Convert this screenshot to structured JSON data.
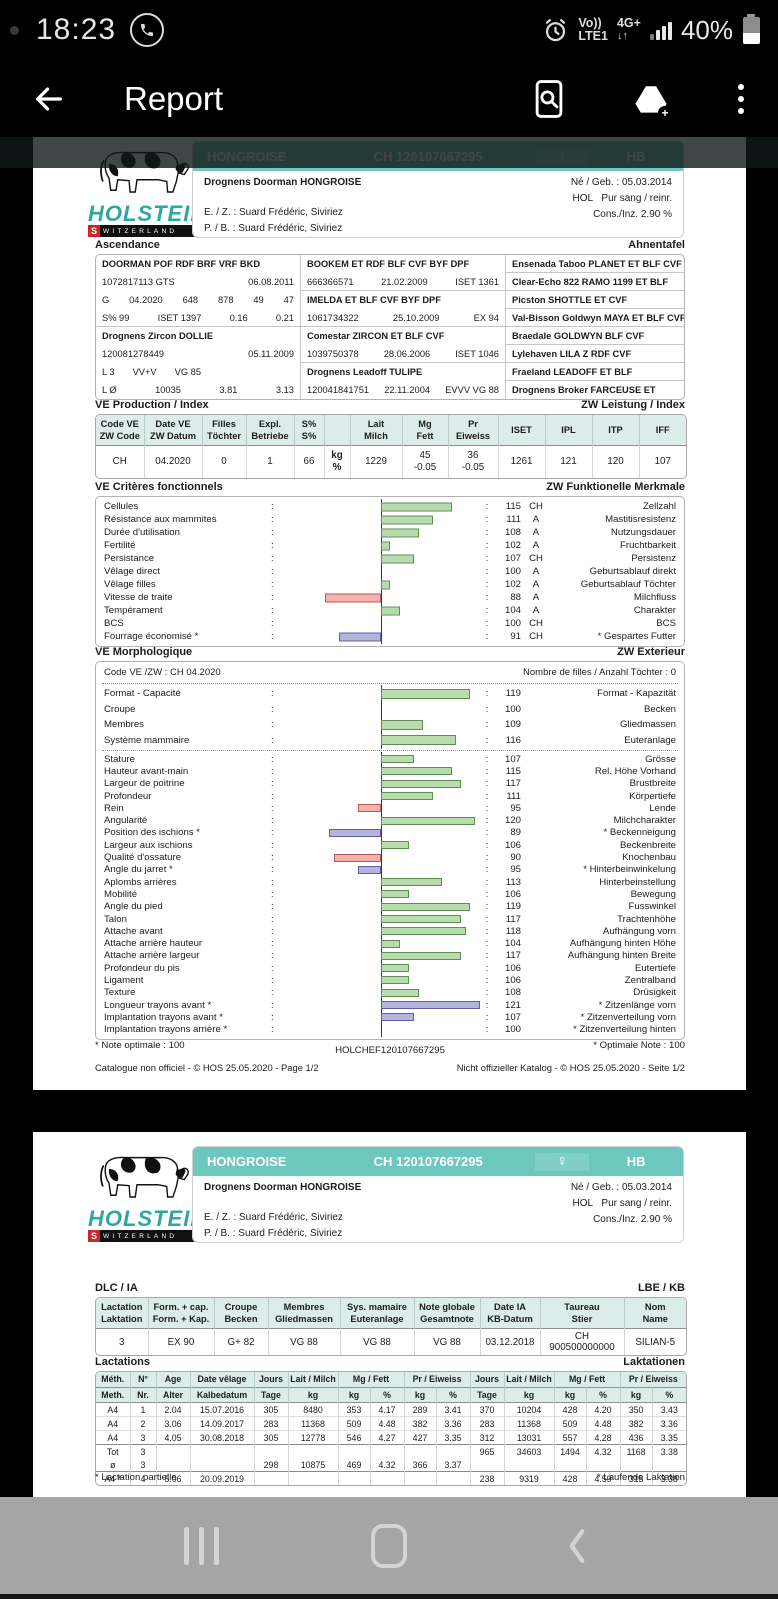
{
  "status_bar": {
    "time": "18:23",
    "volte_top": "Vo))",
    "volte_bottom": "LTE1",
    "net": "4G+",
    "net_arrows": "↓↑",
    "battery_pct": "40%"
  },
  "app_bar": {
    "title": "Report"
  },
  "logo": {
    "brand": "HOLSTEIN",
    "country_first": "S",
    "country_rest": "WITZERLAND"
  },
  "animal": {
    "name": "HONGROISE",
    "id": "CH 120107667295",
    "sex_symbol": "♀",
    "herdbook": "HB",
    "full_name": "Drognens Doorman HONGROISE",
    "born": "Né / Geb. : 05.03.2014",
    "breed": "HOL",
    "purity": "Pur sang / reinr.",
    "inbreeding": "Cons./Inz. 2.90 %",
    "breeder": "E. / Z. : Suard Frédéric, Siviriez",
    "owner": "P. / B. : Suard Frédéric, Siviriez"
  },
  "page1": {
    "pedigree": {
      "title_fr": "Ascendance",
      "title_de": "Ahnentafel",
      "col1": [
        {
          "cells": [
            "DOORMAN  POF RDF BRF VRF BKD"
          ],
          "bold": true
        },
        {
          "cells": [
            "1072817113 GTS",
            "06.08.2011"
          ],
          "mode": "ends"
        },
        {
          "cells": [
            "G",
            "04.2020",
            "648",
            "878",
            "49",
            "47"
          ],
          "mode": "spread"
        },
        {
          "cells": [
            "S% 99",
            "ISET 1397",
            "0.16",
            "0.21"
          ],
          "mode": "spread"
        },
        {
          "cells": [
            "Drognens Zircon DOLLIE"
          ],
          "bold": true
        },
        {
          "cells": [
            "120081278449",
            "05.11.2009"
          ],
          "mode": "ends"
        },
        {
          "cells": [
            "L 3",
            "VV+V",
            "VG 85"
          ],
          "mode": "gap"
        },
        {
          "cells": [
            "L Ø",
            "10035",
            "3.81",
            "3.13"
          ],
          "mode": "spread"
        }
      ],
      "col2": [
        {
          "cells": [
            "BOOKEM  ET RDF BLF CVF BYF DPF"
          ],
          "bold": true
        },
        {
          "cells": [
            "666366571",
            "21.02.2009",
            "ISET 1361"
          ],
          "mode": "spread"
        },
        {
          "cells": [
            "IMELDA  ET BLF CVF BYF DPF"
          ],
          "bold": true
        },
        {
          "cells": [
            "1061734322",
            "25.10.2009",
            "EX 94"
          ],
          "mode": "spread"
        },
        {
          "cells": [
            "Comestar ZIRCON  ET BLF CVF"
          ],
          "bold": true
        },
        {
          "cells": [
            "1039750378",
            "28.06.2006",
            "ISET 1046"
          ],
          "mode": "spread"
        },
        {
          "cells": [
            "Drognens Leadoff TULIPE"
          ],
          "bold": true
        },
        {
          "cells": [
            "120041841751",
            "22.11.2004",
            "EVVV VG 88"
          ],
          "mode": "spread"
        }
      ],
      "col3": [
        "Ensenada Taboo PLANET  ET BLF CVF BYF",
        "Clear-Echo 822 RAMO 1199  ET BLF",
        "Picston SHOTTLE  ET CVF",
        "Val-Bisson Goldwyn MAYA  ET BLF CVF",
        "Braedale GOLDWYN  BLF CVF",
        "Lylehaven LILA Z  RDF CVF",
        "Fraeland LEADOFF  ET BLF",
        "Drognens Broker FARCEUSE  ET"
      ]
    },
    "production": {
      "title_fr": "VE Production / Index",
      "title_de": "ZW Leistung / Index",
      "headers": [
        [
          "Code VE",
          "ZW Code"
        ],
        [
          "Date VE",
          "ZW Datum"
        ],
        [
          "Filles",
          "Töchter"
        ],
        [
          "Expl.",
          "Betriebe"
        ],
        [
          "S%",
          "S%"
        ],
        [
          ""
        ],
        [
          "Lait",
          "Milch"
        ],
        [
          "Mg",
          "Fett"
        ],
        [
          "Pr",
          "Eiweiss"
        ],
        [
          "ISET"
        ],
        [
          "IPL"
        ],
        [
          "ITP"
        ],
        [
          "IFF"
        ]
      ],
      "row": [
        [
          "CH"
        ],
        [
          "04.2020"
        ],
        [
          "0"
        ],
        [
          "1"
        ],
        [
          "66"
        ],
        [
          "kg",
          "%"
        ],
        [
          "1229"
        ],
        [
          "45",
          "-0.05"
        ],
        [
          "36",
          "-0.05"
        ],
        [
          "1261"
        ],
        [
          "121"
        ],
        [
          "120"
        ],
        [
          "107"
        ]
      ]
    },
    "functional": {
      "title_fr": "VE Critères fonctionnels",
      "title_de": "ZW Funktionelle Merkmale",
      "rows": [
        {
          "label": "Cellules",
          "value": 115,
          "code": "CH",
          "label_de": "Zellzahl"
        },
        {
          "label": "Résistance aux mammites",
          "value": 111,
          "code": "A",
          "label_de": "Mastitisresistenz"
        },
        {
          "label": "Durée d'utilisation",
          "value": 108,
          "code": "A",
          "label_de": "Nutzungsdauer"
        },
        {
          "label": "Fertilité",
          "value": 102,
          "code": "A",
          "label_de": "Fruchtbarkeit"
        },
        {
          "label": "Persistance",
          "value": 107,
          "code": "CH",
          "label_de": "Persistenz"
        },
        {
          "label": "Vêlage direct",
          "value": 100,
          "code": "A",
          "label_de": "Geburtsablauf direkt"
        },
        {
          "label": "Vêlage filles",
          "value": 102,
          "code": "A",
          "label_de": "Geburtsablauf Töchter"
        },
        {
          "label": "Vitesse de traite",
          "value": 88,
          "code": "A",
          "label_de": "Milchfluss"
        },
        {
          "label": "Tempérament",
          "value": 104,
          "code": "A",
          "label_de": "Charakter"
        },
        {
          "label": "BCS",
          "value": 100,
          "code": "CH",
          "label_de": "BCS"
        },
        {
          "label": "Fourrage économisé *",
          "value": 91,
          "code": "CH",
          "label_de": "* Gespartes Futter"
        }
      ]
    },
    "morpho": {
      "title_fr": "VE Morphologique",
      "title_de": "ZW Exterieur",
      "code_line": "Code VE /ZW : CH 04.2020",
      "daughters_line": "Nombre de filles / Anzahl Töchter : 0",
      "groups": [
        {
          "label": "Format - Capacité",
          "value": 119,
          "label_de": "Format - Kapazität"
        },
        {
          "label": "Croupe",
          "value": 100,
          "label_de": "Becken"
        },
        {
          "label": "Membres",
          "value": 109,
          "label_de": "Gliedmassen"
        },
        {
          "label": "Système mammaire",
          "value": 116,
          "label_de": "Euteranlage"
        }
      ],
      "rows": [
        {
          "label": "Stature",
          "value": 107,
          "label_de": "Grösse"
        },
        {
          "label": "Hauteur avant-main",
          "value": 115,
          "label_de": "Rel. Höhe Vorhand"
        },
        {
          "label": "Largeur de poitrine",
          "value": 117,
          "label_de": "Brustbreite"
        },
        {
          "label": "Profondeur",
          "value": 111,
          "label_de": "Körpertiefe"
        },
        {
          "label": "Rein",
          "value": 95,
          "label_de": "Lende"
        },
        {
          "label": "Angularité",
          "value": 120,
          "label_de": "Milchcharakter"
        },
        {
          "label": "Position des ischions *",
          "value": 89,
          "label_de": "* Beckenneigung"
        },
        {
          "label": "Largeur aux ischions",
          "value": 106,
          "label_de": "Beckenbreite"
        },
        {
          "label": "Qualité d'ossature",
          "value": 90,
          "label_de": "Knochenbau"
        },
        {
          "label": "Angle du jarret *",
          "value": 95,
          "label_de": "* Hinterbeinwinkelung"
        },
        {
          "label": "Aplombs arrières",
          "value": 113,
          "label_de": "Hinterbeinstellung"
        },
        {
          "label": "Mobilité",
          "value": 106,
          "label_de": "Bewegung"
        },
        {
          "label": "Angle du pied",
          "value": 119,
          "label_de": "Fusswinkel"
        },
        {
          "label": "Talon",
          "value": 117,
          "label_de": "Trachtenhöhe"
        },
        {
          "label": "Attache avant",
          "value": 118,
          "label_de": "Aufhängung vorn"
        },
        {
          "label": "Attache arrière hauteur",
          "value": 104,
          "label_de": "Aufhängung hinten Höhe"
        },
        {
          "label": "Attache arrière largeur",
          "value": 117,
          "label_de": "Aufhängung hinten Breite"
        },
        {
          "label": "Profondeur du pis",
          "value": 106,
          "label_de": "Eutertiefe"
        },
        {
          "label": "Ligament",
          "value": 106,
          "label_de": "Zentralband"
        },
        {
          "label": "Texture",
          "value": 108,
          "label_de": "Drüsigkeit"
        },
        {
          "label": "Longueur trayons avant *",
          "value": 121,
          "label_de": "* Zitzenlänge vorn"
        },
        {
          "label": "Implantation trayons avant *",
          "value": 107,
          "label_de": "* Zitzenverteilung vorn"
        },
        {
          "label": "Implantation trayons arrière *",
          "value": 100,
          "label_de": "* Zitzenverteilung hinten"
        }
      ]
    },
    "footnote_fr": "* Note optimale : 100",
    "footnote_center": "HOLCHEF120107667295",
    "footnote_de": "* Optimale Note : 100",
    "footer_fr": "Catalogue non officiel  -  © HOS 25.05.2020  -  Page 1/2",
    "footer_de": "Nicht offizieller Katalog  -  © HOS 25.05.2020  -  Seite 1/2"
  },
  "page2": {
    "dlc": {
      "title_fr": "DLC / IA",
      "title_de": "LBE / KB",
      "headers": [
        [
          "Lactation",
          "Laktation"
        ],
        [
          "Form. + cap.",
          "Form. + Kap."
        ],
        [
          "Croupe",
          "Becken"
        ],
        [
          "Membres",
          "Gliedmassen"
        ],
        [
          "Sys. mamaire",
          "Euteranlage"
        ],
        [
          "Note globale",
          "Gesamtnote"
        ],
        [
          "Date IA",
          "KB-Datum"
        ],
        [
          "Taureau",
          "Stier"
        ],
        [
          "Nom",
          "Name"
        ]
      ],
      "row": [
        [
          "3"
        ],
        [
          "EX 90"
        ],
        [
          "G+ 82"
        ],
        [
          "VG 88"
        ],
        [
          "VG 88"
        ],
        [
          "VG 88"
        ],
        [
          "03.12.2018"
        ],
        [
          "CH 900500000000"
        ],
        [
          "SILIAN-5"
        ]
      ]
    },
    "lactations": {
      "title_fr": "Lactations",
      "title_de": "Laktationen",
      "header_row1": [
        {
          "label": "Méth.",
          "span": 1
        },
        {
          "label": "N°",
          "span": 1
        },
        {
          "label": "Age",
          "span": 1
        },
        {
          "label": "Date vêlage",
          "span": 1
        },
        {
          "label": "Jours",
          "span": 1
        },
        {
          "label": "Lait / Milch",
          "span": 1
        },
        {
          "label": "Mg / Fett",
          "span": 2
        },
        {
          "label": "Pr / Eiweiss",
          "span": 2
        },
        {
          "label": "Jours",
          "span": 1
        },
        {
          "label": "Lait / Milch",
          "span": 1
        },
        {
          "label": "Mg / Fett",
          "span": 2
        },
        {
          "label": "Pr / Eiweiss",
          "span": 2
        }
      ],
      "header_row2": [
        "Meth.",
        "Nr.",
        "Alter",
        "Kalbedatum",
        "Tage",
        "kg",
        "kg",
        "%",
        "kg",
        "%",
        "Tage",
        "kg",
        "kg",
        "%",
        "kg",
        "%"
      ],
      "rows": [
        [
          "A4",
          "1",
          "2.04",
          "15.07.2016",
          "305",
          "8480",
          "353",
          "4.17",
          "289",
          "3.41",
          "370",
          "10204",
          "428",
          "4.20",
          "350",
          "3.43"
        ],
        [
          "A4",
          "2",
          "3.06",
          "14.09.2017",
          "283",
          "11368",
          "509",
          "4.48",
          "382",
          "3.36",
          "283",
          "11368",
          "509",
          "4.48",
          "382",
          "3.36"
        ],
        [
          "A4",
          "3",
          "4.05",
          "30.08.2018",
          "305",
          "12778",
          "546",
          "4.27",
          "427",
          "3.35",
          "312",
          "13031",
          "557",
          "4.28",
          "436",
          "3.35"
        ],
        [
          "Tot",
          "3",
          "",
          "",
          "",
          "",
          "",
          "",
          "",
          "",
          "965",
          "34603",
          "1494",
          "4.32",
          "1168",
          "3.38"
        ],
        [
          "ø",
          "3",
          "",
          "",
          "298",
          "10875",
          "469",
          "4.32",
          "366",
          "3.37",
          "",
          "",
          "",
          "",
          "",
          ""
        ],
        [
          "A4 *",
          "4",
          "5.06",
          "20.09.2019",
          "",
          "",
          "",
          "",
          "",
          "",
          "238",
          "9319",
          "428",
          "4.59",
          "315",
          "3.38"
        ]
      ],
      "footnote_fr": "* Lactation partielle",
      "footnote_de": "* Laufende Laktation"
    }
  }
}
